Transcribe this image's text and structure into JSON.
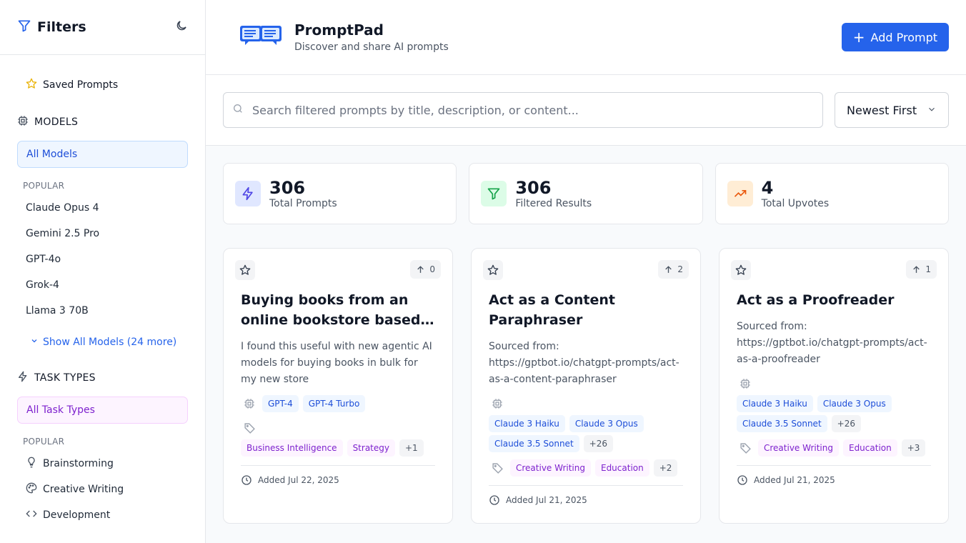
{
  "sidebar": {
    "title": "Filters",
    "saved_label": "Saved Prompts",
    "models_heading": "MODELS",
    "all_models": "All Models",
    "popular_label": "POPULAR",
    "models": [
      "Claude Opus 4",
      "Gemini 2.5 Pro",
      "GPT-4o",
      "Grok-4",
      "Llama 3 70B"
    ],
    "show_all_models": "Show All Models (24 more)",
    "task_heading": "TASK TYPES",
    "all_tasks": "All Task Types",
    "tasks": [
      {
        "label": "Brainstorming",
        "icon": "lightbulb-icon"
      },
      {
        "label": "Creative Writing",
        "icon": "palette-icon"
      },
      {
        "label": "Development",
        "icon": "code-icon"
      }
    ]
  },
  "header": {
    "title": "PromptPad",
    "subtitle": "Discover and share AI prompts",
    "add_label": "Add Prompt"
  },
  "search": {
    "placeholder": "Search filtered prompts by title, description, or content...",
    "value": ""
  },
  "sort": {
    "selected": "Newest First"
  },
  "stats": [
    {
      "value": "306",
      "label": "Total Prompts",
      "color": "#4f46e5",
      "bg": "#e0e7ff"
    },
    {
      "value": "306",
      "label": "Filtered Results",
      "color": "#16a34a",
      "bg": "#dcfce7"
    },
    {
      "value": "4",
      "label": "Total Upvotes",
      "color": "#ea580c",
      "bg": "#ffedd5"
    }
  ],
  "cards": [
    {
      "title": "Buying books from an online bookstore based on my preferences",
      "desc": "I found this useful with new agentic AI models for buying books in bulk for my new store",
      "upvotes": "0",
      "models": [
        "GPT-4",
        "GPT-4 Turbo"
      ],
      "models_more": "",
      "tags": [
        "Business Intelligence",
        "Strategy"
      ],
      "tags_more": "+1",
      "date": "Added Jul 22, 2025"
    },
    {
      "title": "Act as a Content Paraphraser",
      "desc": "Sourced from: https://gptbot.io/chatgpt-prompts/act-as-a-content-paraphraser",
      "upvotes": "2",
      "models": [
        "Claude 3 Haiku",
        "Claude 3 Opus",
        "Claude 3.5 Sonnet"
      ],
      "models_more": "+26",
      "tags": [
        "Creative Writing",
        "Education"
      ],
      "tags_more": "+2",
      "date": "Added Jul 21, 2025"
    },
    {
      "title": "Act as a Proofreader",
      "desc": "Sourced from: https://gptbot.io/chatgpt-prompts/act-as-a-proofreader",
      "upvotes": "1",
      "models": [
        "Claude 3 Haiku",
        "Claude 3 Opus",
        "Claude 3.5 Sonnet"
      ],
      "models_more": "+26",
      "tags": [
        "Creative Writing",
        "Education"
      ],
      "tags_more": "+3",
      "date": "Added Jul 21, 2025"
    }
  ],
  "colors": {
    "accent": "#2563eb",
    "star": "#eab308"
  }
}
